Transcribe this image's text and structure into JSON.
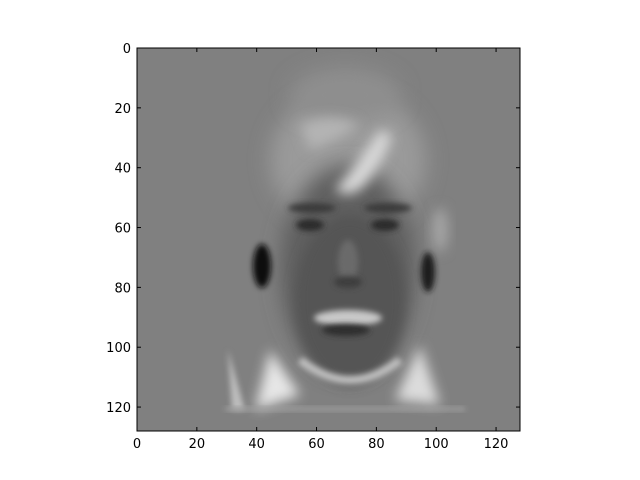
{
  "chart_data": {
    "type": "heatmap",
    "title": "",
    "xlabel": "",
    "ylabel": "",
    "colormap": "gray",
    "image_shape": [
      128,
      128
    ],
    "xlim": [
      0,
      128
    ],
    "ylim": [
      128,
      0
    ],
    "x_ticks": [
      0,
      20,
      40,
      60,
      80,
      100,
      120
    ],
    "y_ticks": [
      0,
      20,
      40,
      60,
      80,
      100,
      120
    ],
    "x_tick_labels": [
      "0",
      "20",
      "40",
      "60",
      "80",
      "100",
      "120"
    ],
    "y_tick_labels": [
      "0",
      "20",
      "40",
      "60",
      "80",
      "100",
      "120"
    ],
    "content": "grayscale face image (eigenface-like), dark eyes and ears, bright hair streak and neck/collar",
    "background_gray": "#808080",
    "grid": false,
    "legend": "none"
  }
}
